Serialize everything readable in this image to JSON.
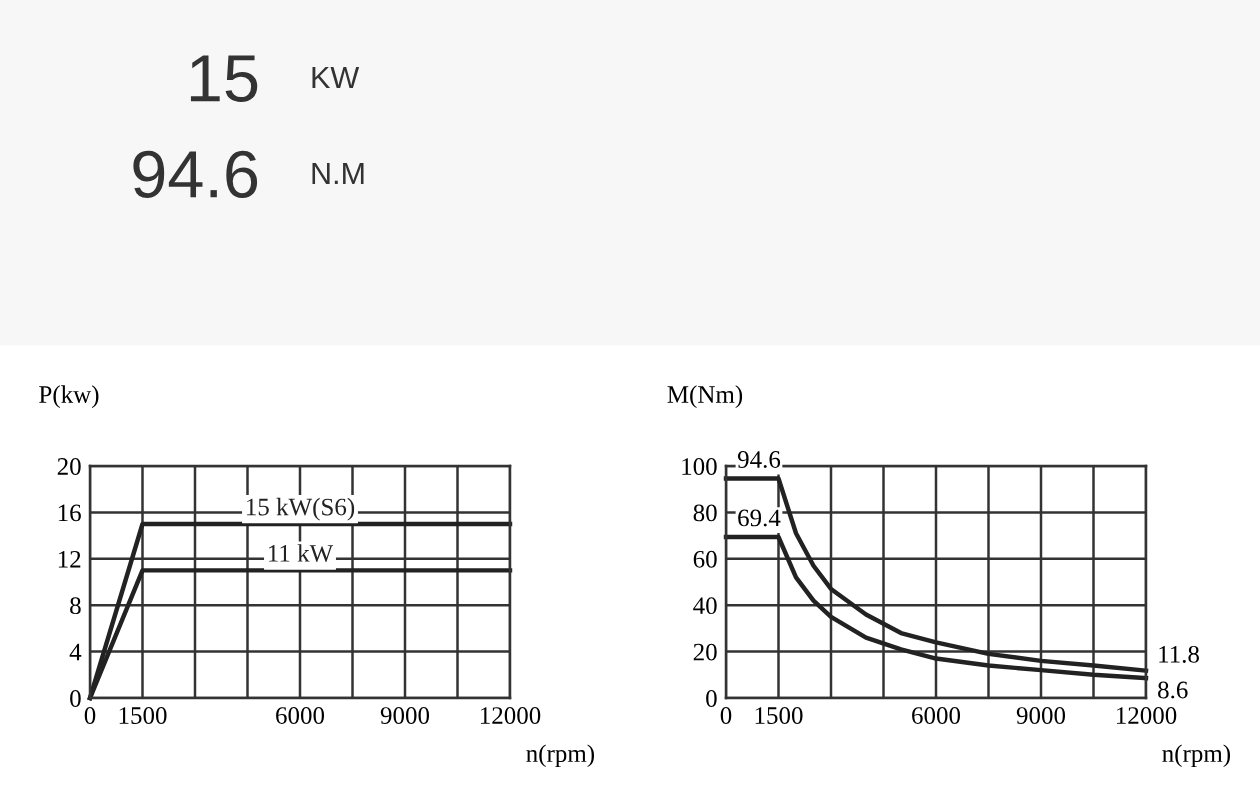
{
  "chart_data": [
    {
      "type": "other",
      "annotations": [
        "15",
        "KW",
        "94.6",
        "N.M"
      ]
    },
    {
      "type": "line",
      "xlabel": "n(rpm)",
      "ylabel": "P(kw)",
      "xlim": [
        0,
        12000
      ],
      "ylim": [
        0,
        20
      ],
      "xticks": [
        0,
        1500,
        {
          "value": 3000,
          "label": null
        },
        {
          "value": 4500,
          "label": null
        },
        6000,
        {
          "value": 7500,
          "label": null
        },
        9000,
        {
          "value": 10500,
          "label": null
        },
        12000
      ],
      "yticks": [
        0,
        4,
        8,
        12,
        16,
        20
      ],
      "grid": true,
      "x": [
        0,
        1500,
        12000
      ],
      "series": [
        {
          "name": "15 kW(S6)",
          "color": "#222222",
          "values": [
            0,
            15,
            15
          ]
        },
        {
          "name": "11 kW",
          "color": "#222222",
          "values": [
            0,
            11,
            11
          ]
        }
      ]
    },
    {
      "type": "line",
      "xlabel": "n(rpm)",
      "ylabel": "M(Nm)",
      "xlim": [
        0,
        12000
      ],
      "ylim": [
        0,
        100
      ],
      "xticks": [
        0,
        1500,
        {
          "value": 3000,
          "label": null
        },
        {
          "value": 4500,
          "label": null
        },
        6000,
        {
          "value": 7500,
          "label": null
        },
        9000,
        {
          "value": 10500,
          "label": null
        },
        12000
      ],
      "yticks": [
        0,
        20,
        40,
        60,
        80,
        100
      ],
      "grid": true,
      "x": [
        0,
        1500,
        2000,
        2500,
        3000,
        4000,
        5000,
        6000,
        7500,
        9000,
        10500,
        12000
      ],
      "series": [
        {
          "color": "#222222",
          "values": [
            94.6,
            94.6,
            71,
            57,
            47,
            36,
            28,
            24,
            19,
            16,
            14,
            11.8
          ],
          "value_labels": [
            "94.6",
            null,
            null,
            null,
            null,
            null,
            null,
            null,
            null,
            null,
            null,
            "11.8"
          ]
        },
        {
          "color": "#222222",
          "values": [
            69.4,
            69.4,
            52,
            42,
            35,
            26,
            21,
            17,
            14,
            12,
            10,
            8.6
          ],
          "value_labels": [
            "69.4",
            null,
            null,
            null,
            null,
            null,
            null,
            null,
            null,
            null,
            null,
            "8.6"
          ]
        }
      ]
    }
  ]
}
